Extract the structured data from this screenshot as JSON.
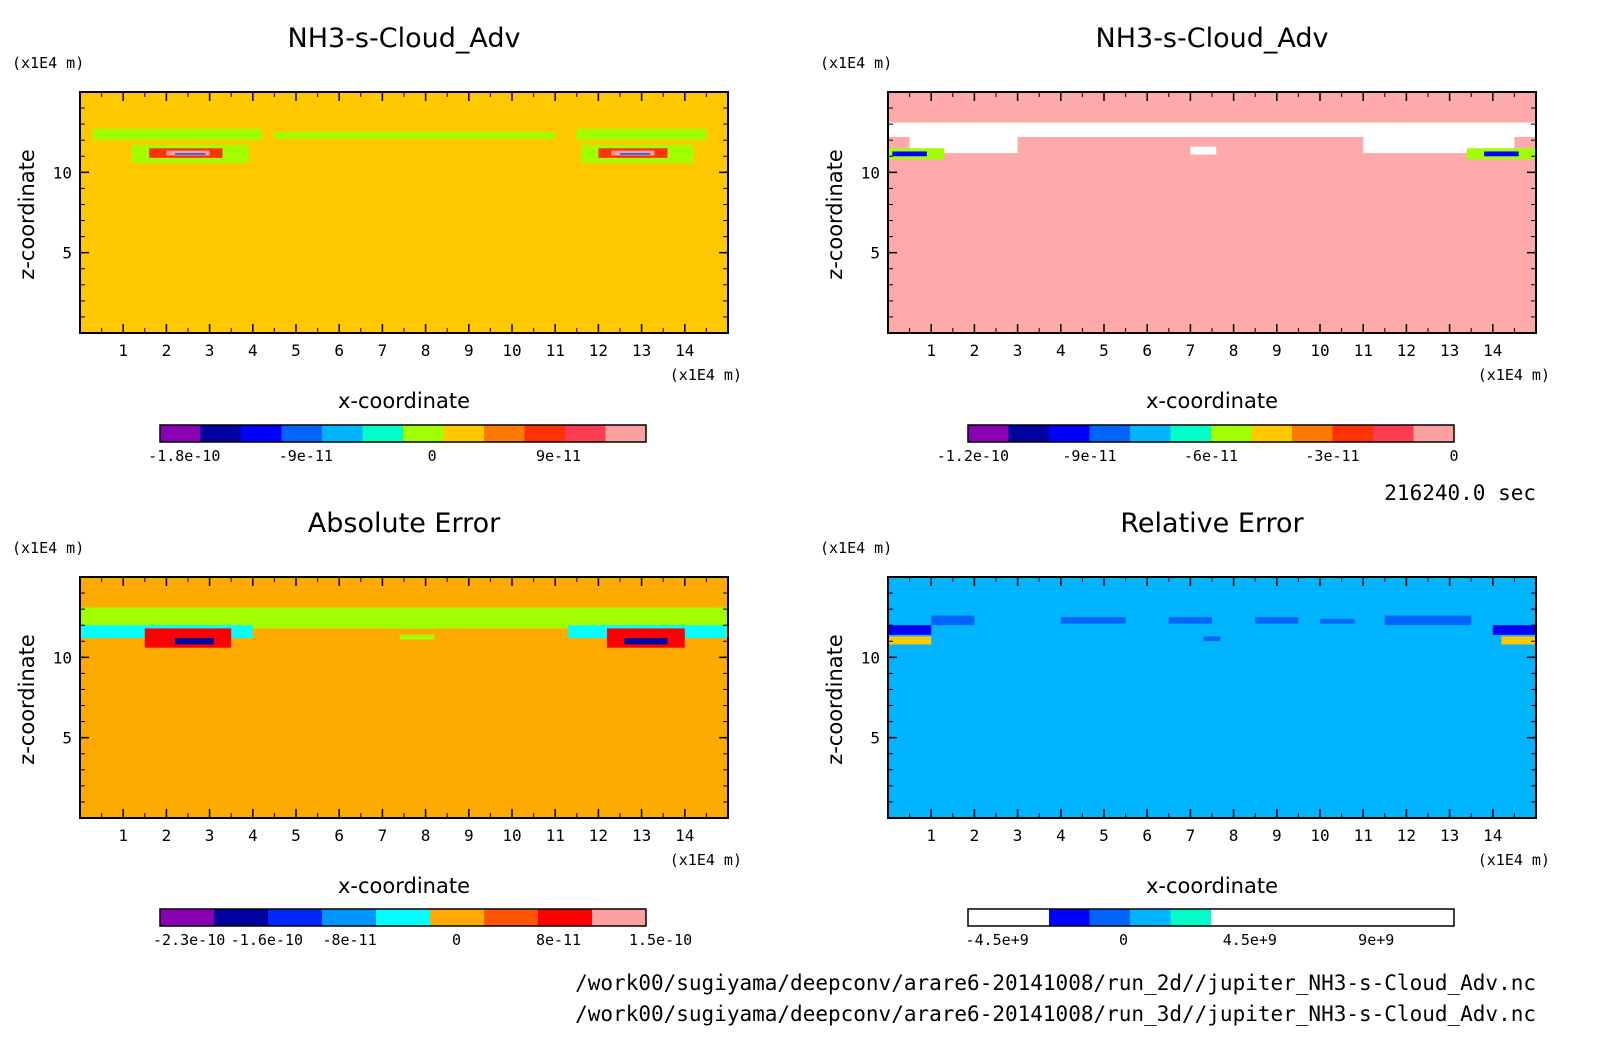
{
  "figure": {
    "time_label": "216240.0 sec",
    "footer_lines": [
      "/work00/sugiyama/deepconv/arare6-20141008/run_2d//jupiter_NH3-s-Cloud_Adv.nc",
      "/work00/sugiyama/deepconv/arare6-20141008/run_3d//jupiter_NH3-s-Cloud_Adv.nc"
    ]
  },
  "chart_data": [
    {
      "type": "heatmap",
      "title": "NH3-s-Cloud_Adv",
      "xlabel": "x-coordinate",
      "ylabel": "z-coordinate",
      "x_unit": "(x1E4 m)",
      "y_unit": "(x1E4 m)",
      "xlim": [
        0,
        15
      ],
      "ylim": [
        0,
        15
      ],
      "x_ticks": [
        1,
        2,
        3,
        4,
        5,
        6,
        7,
        8,
        9,
        10,
        11,
        12,
        13,
        14
      ],
      "y_ticks": [
        5,
        10
      ],
      "background_color": "#ffc800",
      "colorbar": {
        "colors": [
          "#8c00b4",
          "#0000a0",
          "#0000ff",
          "#0064ff",
          "#00b4ff",
          "#00ffc8",
          "#a0ff00",
          "#ffc800",
          "#ff7800",
          "#ff3200",
          "#ff3c50",
          "#ffa0a0"
        ],
        "tick_labels": [
          "-1.8e-10",
          "-9e-11",
          "0",
          "9e-11"
        ]
      }
    },
    {
      "type": "heatmap",
      "title": "NH3-s-Cloud_Adv",
      "xlabel": "x-coordinate",
      "ylabel": "z-coordinate",
      "x_unit": "(x1E4 m)",
      "y_unit": "(x1E4 m)",
      "xlim": [
        0,
        15
      ],
      "ylim": [
        0,
        15
      ],
      "x_ticks": [
        1,
        2,
        3,
        4,
        5,
        6,
        7,
        8,
        9,
        10,
        11,
        12,
        13,
        14
      ],
      "y_ticks": [
        5,
        10
      ],
      "background_color": "#ffaaaa",
      "colorbar": {
        "colors": [
          "#8c00b4",
          "#0000a0",
          "#0000ff",
          "#0064ff",
          "#00b4ff",
          "#00ffc8",
          "#a0ff00",
          "#ffc800",
          "#ff7800",
          "#ff3200",
          "#ff3c50",
          "#ffa0a0"
        ],
        "tick_labels": [
          "-1.2e-10",
          "-9e-11",
          "-6e-11",
          "-3e-11",
          "0"
        ]
      }
    },
    {
      "type": "heatmap",
      "title": "Absolute Error",
      "xlabel": "x-coordinate",
      "ylabel": "z-coordinate",
      "x_unit": "(x1E4 m)",
      "y_unit": "(x1E4 m)",
      "xlim": [
        0,
        15
      ],
      "ylim": [
        0,
        15
      ],
      "x_ticks": [
        1,
        2,
        3,
        4,
        5,
        6,
        7,
        8,
        9,
        10,
        11,
        12,
        13,
        14
      ],
      "y_ticks": [
        5,
        10
      ],
      "background_color": "#ffaa00",
      "colorbar": {
        "colors": [
          "#8c00b4",
          "#0000a0",
          "#0028ff",
          "#0096ff",
          "#00ffff",
          "#ffaa00",
          "#ff5500",
          "#ff0000",
          "#ffa0a0"
        ],
        "tick_labels": [
          "-2.3e-10",
          "-1.6e-10",
          "-8e-11",
          "0",
          "8e-11",
          "1.5e-10"
        ]
      }
    },
    {
      "type": "heatmap",
      "title": "Relative Error",
      "xlabel": "x-coordinate",
      "ylabel": "z-coordinate",
      "x_unit": "(x1E4 m)",
      "y_unit": "(x1E4 m)",
      "xlim": [
        0,
        15
      ],
      "ylim": [
        0,
        15
      ],
      "x_ticks": [
        1,
        2,
        3,
        4,
        5,
        6,
        7,
        8,
        9,
        10,
        11,
        12,
        13,
        14
      ],
      "y_ticks": [
        5,
        10
      ],
      "background_color": "#00b4ff",
      "colorbar": {
        "colors": [
          "#ffffff",
          "#ffffff",
          "#0000ff",
          "#0064ff",
          "#00b4ff",
          "#00ffc8",
          "#ffffff",
          "#ffffff",
          "#ffffff",
          "#ffffff",
          "#ffffff",
          "#ffffff"
        ],
        "tick_labels": [
          "-4.5e+9",
          "0",
          "4.5e+9",
          "9e+9"
        ]
      }
    }
  ]
}
